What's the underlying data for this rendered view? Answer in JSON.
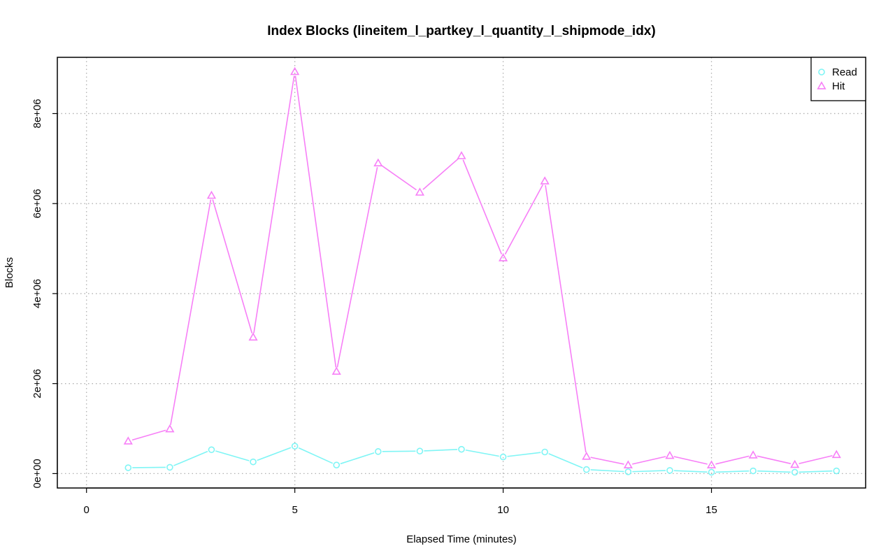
{
  "chart_data": {
    "type": "line",
    "title": "Index Blocks (lineitem_l_partkey_l_quantity_l_shipmode_idx)",
    "xlabel": "Elapsed Time (minutes)",
    "ylabel": "Blocks",
    "xlim": [
      -0.7,
      18.7
    ],
    "ylim": [
      -320000,
      9250000
    ],
    "x_ticks": [
      0,
      5,
      10,
      15
    ],
    "x_tick_labels": [
      "0",
      "5",
      "10",
      "15"
    ],
    "y_ticks": [
      0,
      2000000,
      4000000,
      6000000,
      8000000
    ],
    "y_tick_labels": [
      "0e+00",
      "2e+06",
      "4e+06",
      "6e+06",
      "8e+06"
    ],
    "grid": true,
    "legend_position": "top-right",
    "x": [
      1,
      2,
      3,
      4,
      5,
      6,
      7,
      8,
      9,
      10,
      11,
      12,
      13,
      14,
      15,
      16,
      17,
      18
    ],
    "series": [
      {
        "name": "Read",
        "color": "#7ff5f5",
        "marker": "circle",
        "values": [
          130000,
          140000,
          530000,
          260000,
          610000,
          190000,
          490000,
          500000,
          540000,
          370000,
          480000,
          90000,
          40000,
          70000,
          30000,
          60000,
          30000,
          60000
        ]
      },
      {
        "name": "Hit",
        "color": "#f77ff7",
        "marker": "triangle",
        "values": [
          720000,
          990000,
          6180000,
          3030000,
          8930000,
          2270000,
          6900000,
          6250000,
          7060000,
          4790000,
          6500000,
          380000,
          190000,
          400000,
          190000,
          410000,
          200000,
          420000
        ]
      }
    ]
  }
}
